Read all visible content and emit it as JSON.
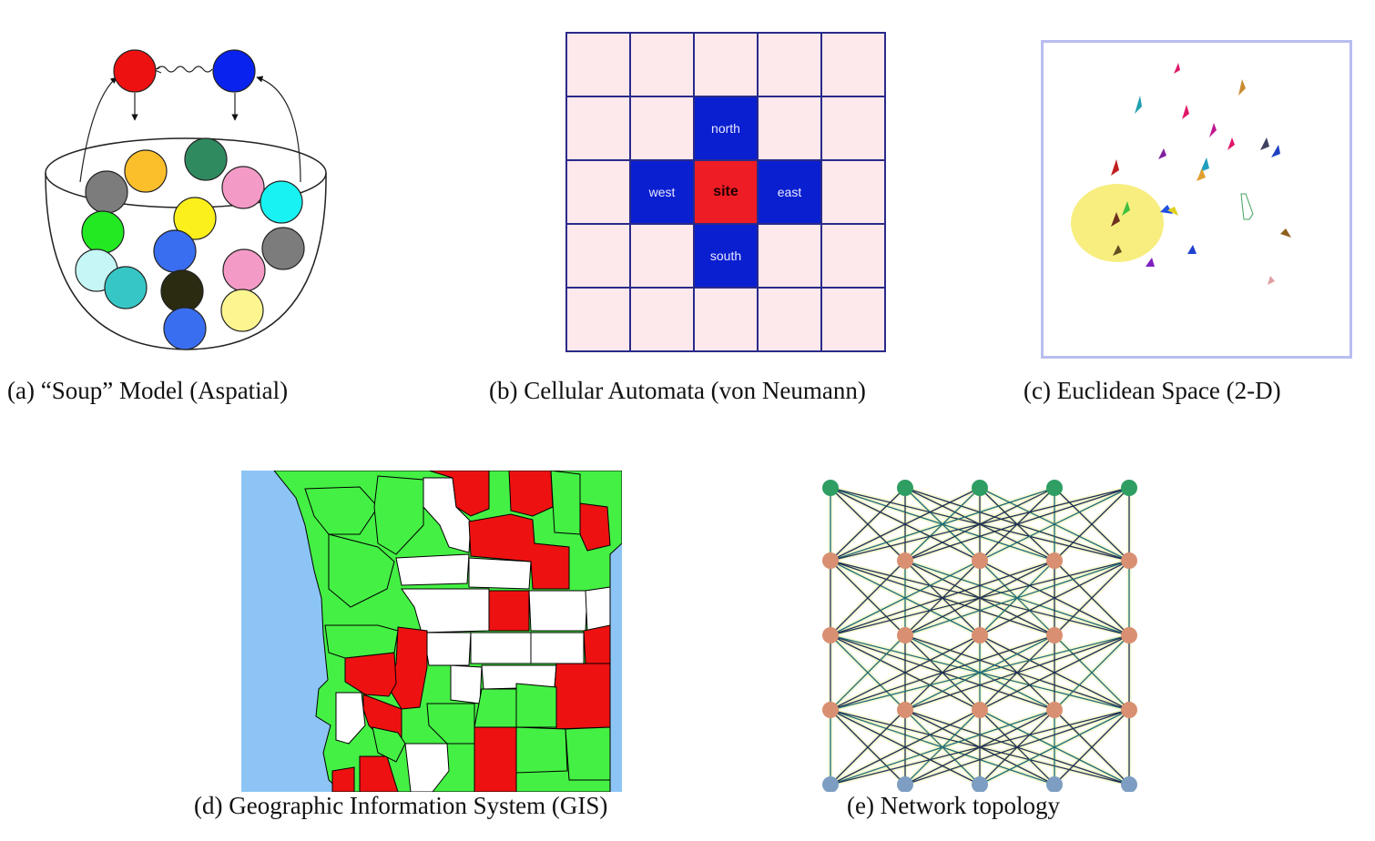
{
  "captions": {
    "a": "(a) “Soup” Model (Aspatial)",
    "b": "(b) Cellular Automata (von Neumann)",
    "c": "(c) Euclidean Space (2-D)",
    "d": "(d) Geographic Information System (GIS)",
    "e": "(e) Network topology"
  },
  "cellular_automata": {
    "north": "north",
    "south": "south",
    "east": "east",
    "west": "west",
    "site": "site"
  },
  "colors": {
    "ca_background": "#fde8ec",
    "ca_neighbor": "#0a1fd0",
    "ca_site": "#ee1c24",
    "gis_water": "#8cc5f5",
    "gis_green": "#44f044",
    "gis_red": "#ee1111",
    "net_top": "#2e9e63",
    "net_middle": "#d98f72",
    "net_bottom": "#7d9ec2"
  },
  "network": {
    "layers": 5,
    "nodes_per_layer": 5
  }
}
